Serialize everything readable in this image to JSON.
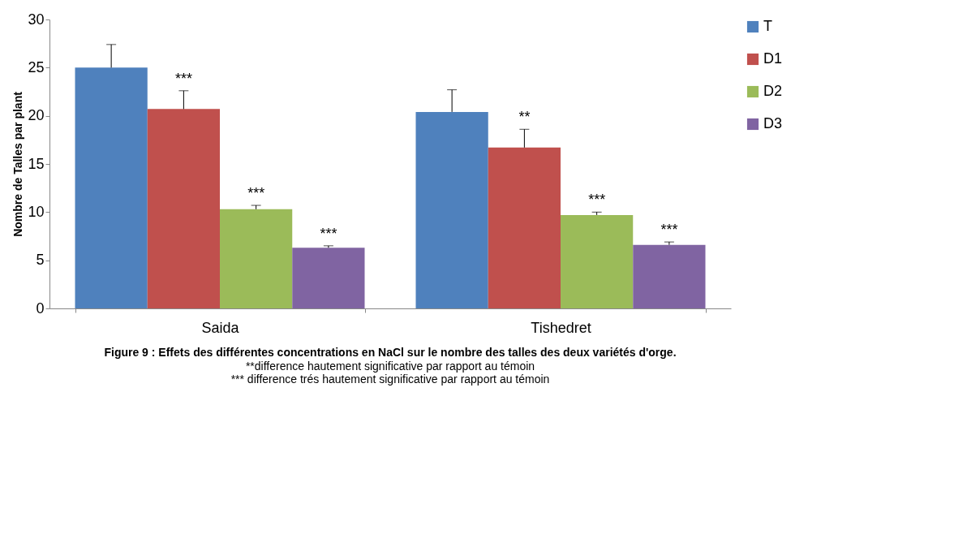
{
  "chart_data": {
    "type": "bar",
    "title": "Figure 9 : Effets des différentes concentrations en NaCl sur le nombre des  talles des deux variétés d'orge.",
    "ylabel": "Nombre de Talles par plant",
    "categories": [
      "Saida",
      "Tishedret"
    ],
    "series": [
      {
        "name": "T",
        "color": "#4f81bd",
        "values": [
          25.0,
          20.4
        ],
        "errors": [
          [
            25.0,
            27.4
          ],
          [
            20.4,
            22.7
          ]
        ],
        "value_labels": [
          null,
          null
        ]
      },
      {
        "name": "D1",
        "color": "#c0504d",
        "values": [
          20.7,
          16.7
        ],
        "errors": [
          [
            20.7,
            22.6
          ],
          [
            16.7,
            18.6
          ]
        ],
        "value_labels": [
          "***",
          "**"
        ]
      },
      {
        "name": "D2",
        "color": "#9bbb59",
        "values": [
          10.3,
          9.7
        ],
        "errors": [
          [
            10.3,
            10.7
          ],
          [
            9.7,
            10.0
          ]
        ],
        "value_labels": [
          "***",
          "***"
        ]
      },
      {
        "name": "D3",
        "color": "#8064a2",
        "values": [
          6.3,
          6.6
        ],
        "errors": [
          [
            6.3,
            6.5
          ],
          [
            6.6,
            6.9
          ]
        ],
        "value_labels": [
          "***",
          "***"
        ]
      }
    ],
    "ylim": [
      0,
      30
    ],
    "yticks": [
      0,
      5,
      10,
      15,
      20,
      25,
      30
    ],
    "grid": false,
    "legend": "right",
    "annotations": [
      "**difference  hautement significative par rapport au témoin",
      "*** difference  trés hautement significative par rapport au témoin"
    ]
  }
}
